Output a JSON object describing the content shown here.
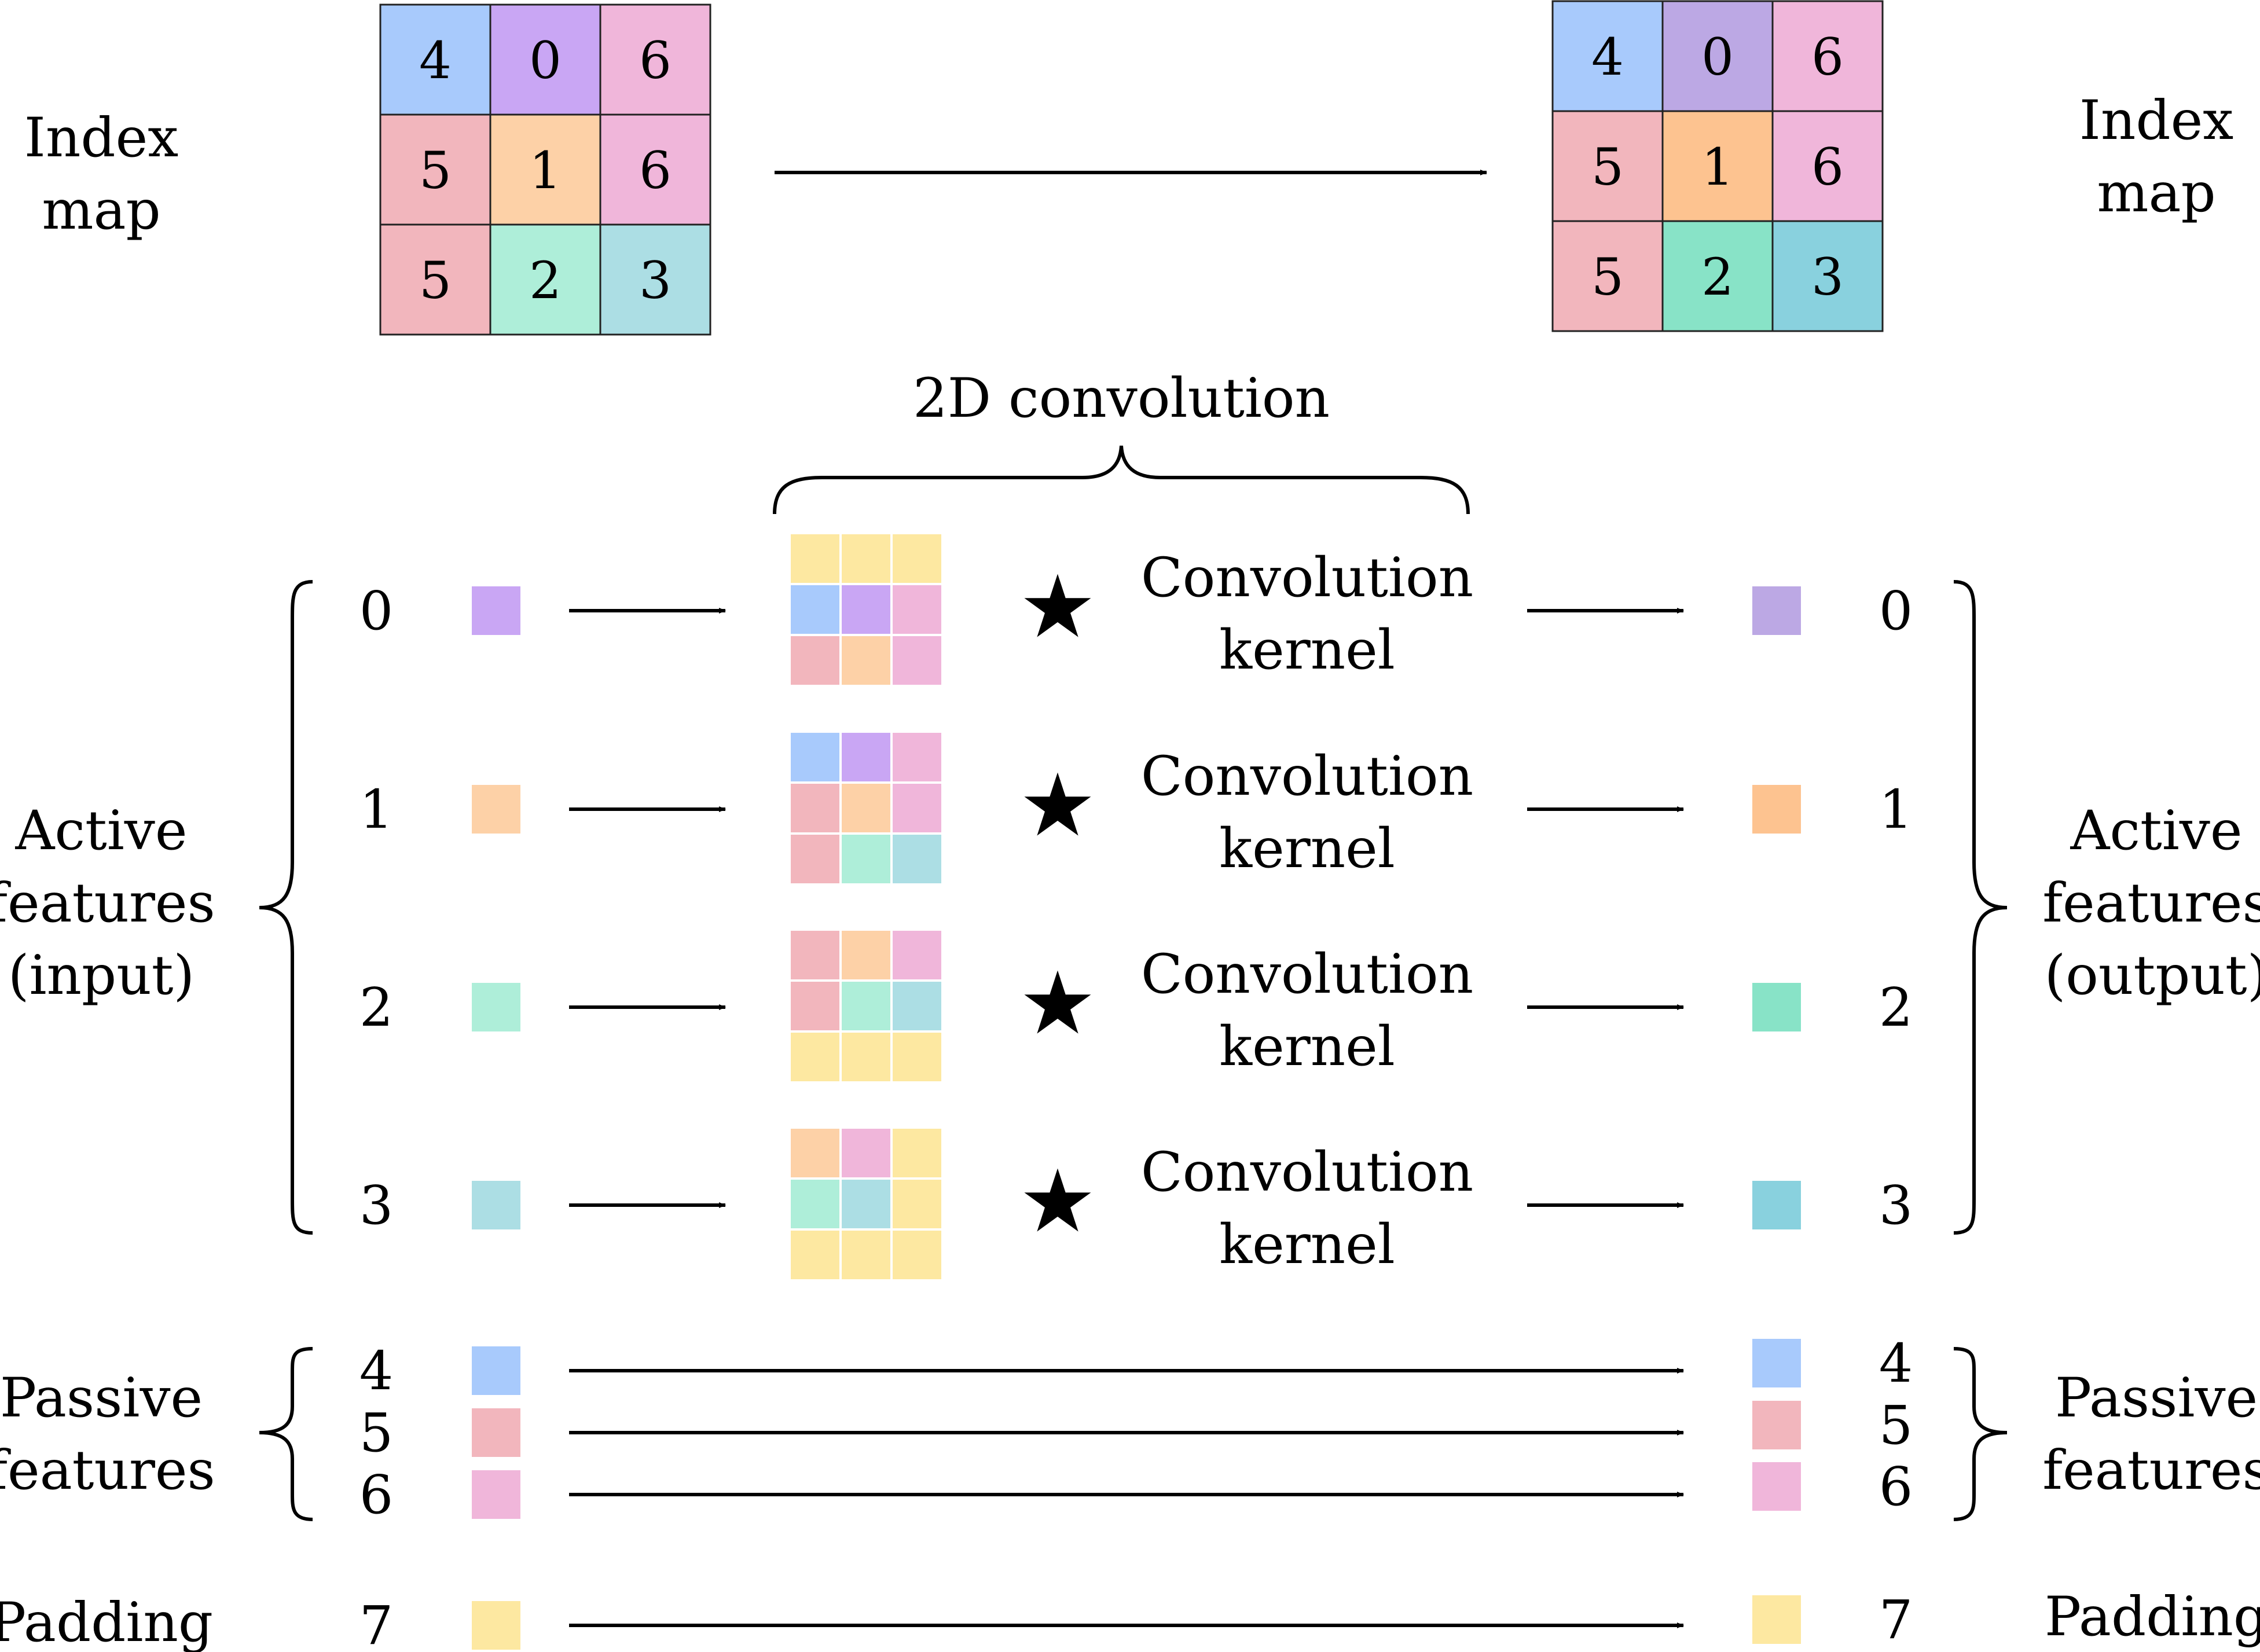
{
  "colors": {
    "0": "#c9a6f4",
    "1": "#fdd1a7",
    "2": "#aeeed9",
    "3": "#acdee4",
    "4": "#a8cafc",
    "5": "#f2b6bd",
    "6": "#f0b6da",
    "7": "#fde8a1"
  },
  "output_colors": {
    "0": "#bca8e4",
    "1": "#fdc390",
    "2": "#88e3c7",
    "3": "#89d1de",
    "4": "#a8cafc",
    "5": "#f2b6bd",
    "6": "#f0b6da",
    "7": "#fde8a1"
  },
  "index_map_in": {
    "label_lines": [
      "Index",
      "map"
    ],
    "grid": [
      [
        4,
        0,
        6
      ],
      [
        5,
        1,
        6
      ],
      [
        5,
        2,
        3
      ]
    ]
  },
  "index_map_out": {
    "label_lines": [
      "Index",
      "map"
    ],
    "grid": [
      [
        4,
        0,
        6
      ],
      [
        5,
        1,
        6
      ],
      [
        5,
        2,
        3
      ]
    ]
  },
  "convolution_label": "2D convolution",
  "active_input_label": [
    "Active",
    "features",
    "(input)"
  ],
  "active_output_label": [
    "Active",
    "features",
    "(output)"
  ],
  "passive_label": [
    "Passive",
    "features"
  ],
  "padding_label": "Padding",
  "star_symbol": "★",
  "active_rows": [
    {
      "index": "0",
      "kernel_text": [
        "Convolution",
        "kernel"
      ],
      "neighborhood": [
        [
          7,
          7,
          7
        ],
        [
          4,
          0,
          6
        ],
        [
          5,
          1,
          6
        ]
      ]
    },
    {
      "index": "1",
      "kernel_text": [
        "Convolution",
        "kernel"
      ],
      "neighborhood": [
        [
          4,
          0,
          6
        ],
        [
          5,
          1,
          6
        ],
        [
          5,
          2,
          3
        ]
      ]
    },
    {
      "index": "2",
      "kernel_text": [
        "Convolution",
        "kernel"
      ],
      "neighborhood": [
        [
          5,
          1,
          6
        ],
        [
          5,
          2,
          3
        ],
        [
          7,
          7,
          7
        ]
      ]
    },
    {
      "index": "3",
      "kernel_text": [
        "Convolution",
        "kernel"
      ],
      "neighborhood": [
        [
          1,
          6,
          7
        ],
        [
          2,
          3,
          7
        ],
        [
          7,
          7,
          7
        ]
      ]
    }
  ],
  "passive_rows": [
    "4",
    "5",
    "6"
  ],
  "padding_row": "7"
}
